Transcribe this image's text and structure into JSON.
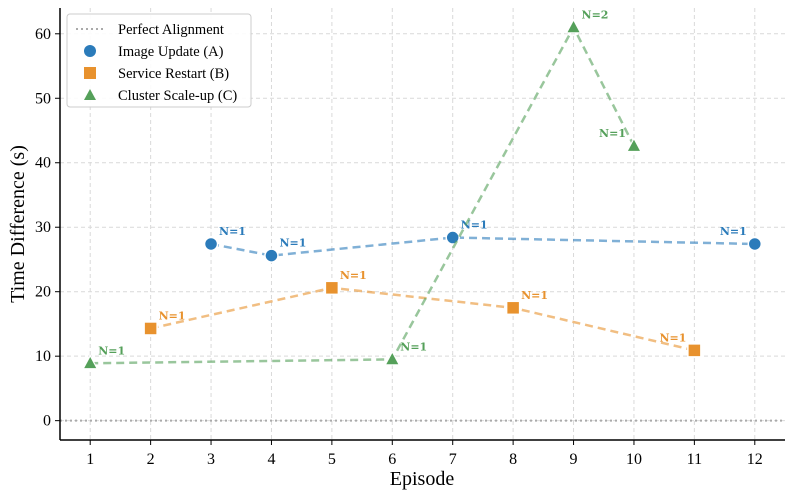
{
  "chart_data": {
    "type": "line",
    "title": "",
    "xlabel": "Episode",
    "ylabel": "Time Difference (s)",
    "xlim": [
      0.5,
      12.5
    ],
    "ylim": [
      -3,
      64
    ],
    "x_ticks": [
      1,
      2,
      3,
      4,
      5,
      6,
      7,
      8,
      9,
      10,
      11,
      12
    ],
    "y_ticks": [
      0,
      10,
      20,
      30,
      40,
      50,
      60
    ],
    "grid": true,
    "legend_position": "top-left",
    "reference_line": {
      "name": "Perfect Alignment",
      "y": 0,
      "color": "#aaaaaa"
    },
    "series": [
      {
        "name": "Image Update (A)",
        "color": "#2b7bba",
        "marker": "circle",
        "x": [
          3,
          4,
          7,
          12
        ],
        "y": [
          27.4,
          25.6,
          28.4,
          27.4
        ],
        "labels": [
          "N=1",
          "N=1",
          "N=1",
          "N=1"
        ],
        "label_side": [
          "right",
          "right",
          "right",
          "left"
        ]
      },
      {
        "name": "Service Restart (B)",
        "color": "#e8922e",
        "marker": "square",
        "x": [
          2,
          5,
          8,
          11
        ],
        "y": [
          14.3,
          20.6,
          17.5,
          10.9
        ],
        "labels": [
          "N=1",
          "N=1",
          "N=1",
          "N=1"
        ],
        "label_side": [
          "right",
          "right",
          "right",
          "left"
        ]
      },
      {
        "name": "Cluster Scale-up (C)",
        "color": "#55a05a",
        "marker": "triangle",
        "x": [
          1,
          6,
          9,
          10
        ],
        "y": [
          8.9,
          9.5,
          61.0,
          42.6
        ],
        "labels": [
          "N=1",
          "N=1",
          "N=2",
          "N=1"
        ],
        "label_side": [
          "right",
          "right",
          "right",
          "left"
        ]
      }
    ]
  }
}
